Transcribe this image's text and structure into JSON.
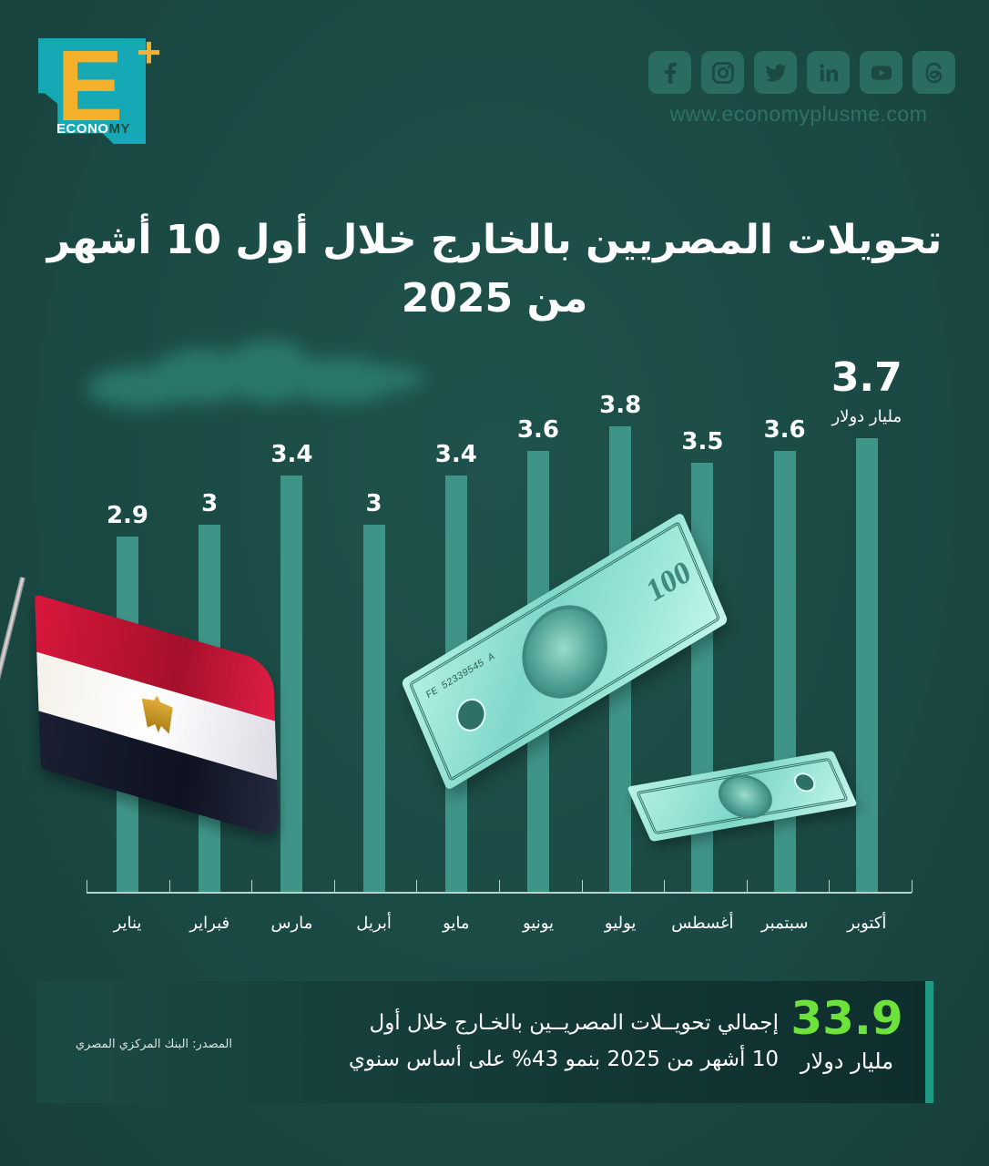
{
  "brand": {
    "logo_letter": "E",
    "logo_plus": "+",
    "logo_word_light": "ECONO",
    "logo_word_dark": "MY",
    "website": "www.economyplusme.com",
    "socials": [
      "facebook-icon",
      "instagram-icon",
      "twitter-icon",
      "linkedin-icon",
      "youtube-icon",
      "threads-icon"
    ],
    "colors": {
      "background": "#1b4a45",
      "bar": "#3f9488",
      "accent_yellow": "#f5b12c",
      "logo_teal": "#14a9b4",
      "highlight_green": "#6de23a",
      "social_tile": "#2b6c62"
    }
  },
  "title": {
    "line1": "تحويلات المصريين بالخارج خلال أول 10 أشهر",
    "line2": "من 2025"
  },
  "chart_data": {
    "type": "bar",
    "title": "تحويلات المصريين بالخارج خلال أول 10 أشهر من 2025",
    "categories": [
      "يناير",
      "فبراير",
      "مارس",
      "أبريل",
      "مايو",
      "يونيو",
      "يوليو",
      "أغسطس",
      "سبتمبر",
      "أكتوبر"
    ],
    "values": [
      2.9,
      3,
      3.4,
      3,
      3.4,
      3.6,
      3.8,
      3.5,
      3.6,
      3.7
    ],
    "value_labels": [
      "2.9",
      "3",
      "3.4",
      "3",
      "3.4",
      "3.6",
      "3.8",
      "3.5",
      "3.6",
      "3.7"
    ],
    "unit": "مليار دولار",
    "xlabel": "",
    "ylabel": "",
    "ylim": [
      0,
      4
    ],
    "grid": false,
    "legend": "none",
    "highlighted_category": "أكتوبر"
  },
  "summary": {
    "total": "33.9",
    "unit": "مليار دولار",
    "text_line1": "إجمالي تحويــلات المصريــين بالخـارج خلال أول",
    "text_line2": "10 أشهر من 2025 بنمو 43% على أساس سنوي"
  },
  "source": "المصدر: البنك المركزي المصري"
}
